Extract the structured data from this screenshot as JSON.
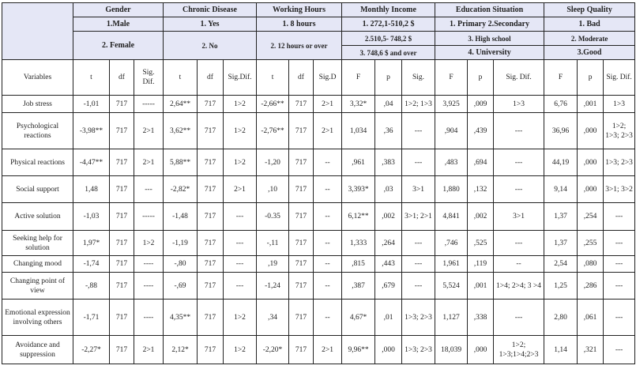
{
  "header": {
    "groups": [
      {
        "title": "Gender",
        "line1": "1.Male",
        "line2": "2. Female"
      },
      {
        "title": "Chronic Disease",
        "line1": "1. Yes",
        "line2": "2. No"
      },
      {
        "title": "Working Hours",
        "line1": "1. 8 hours",
        "line2": "2. 12 hours or over"
      },
      {
        "title": "Monthly Income",
        "line1": "1. 272,1-510,2 $",
        "line2": "2.510,5- 748,2 $",
        "line3": "3. 748,6 $ and over"
      },
      {
        "title": "Education Situation",
        "line1": "1. Primary 2.Secondary",
        "line2": "3. High school",
        "line3": "4. University"
      },
      {
        "title": "Sleep Quality",
        "line1": "1. Bad",
        "line2": "2. Moderate",
        "line3": "3.Good"
      }
    ],
    "columns": [
      "Variables",
      "t",
      "df",
      "Sig. Dif.",
      "t",
      "df",
      "Sig.Dif.",
      "t",
      "df",
      "Sig.D",
      "F",
      "p",
      "Sig.",
      "F",
      "p",
      "Sig. Dif.",
      "F",
      "p",
      "Sig. Dif."
    ]
  },
  "rows": [
    {
      "cells": [
        "Job stress",
        "-1,01",
        "717",
        "-----",
        "2,64**",
        "717",
        "1>2",
        "-2,66**",
        "717",
        "2>1",
        "3,32*",
        ",04",
        "1>2; 1>3",
        "3,925",
        ",009",
        "1>3",
        "6,76",
        ",001",
        "1>3"
      ]
    },
    {
      "cells": [
        "Psychological reactions",
        "-3,98**",
        "717",
        "2>1",
        "3,62**",
        "717",
        "1>2",
        "-2,76**",
        "717",
        "2>1",
        "1,034",
        ",36",
        "---",
        ",904",
        ",439",
        "---",
        "36,96",
        ",000",
        "1>2; 1>3; 2>3"
      ]
    },
    {
      "cells": [
        "Physical reactions",
        "-4,47**",
        "717",
        "2>1",
        "5,88**",
        "717",
        "1>2",
        "-1,20",
        "717",
        "--",
        ",961",
        ",383",
        "---",
        ",483",
        ",694",
        "---",
        "44,19",
        ",000",
        "1>3; 2>3"
      ]
    },
    {
      "cells": [
        "Social support",
        "1,48",
        "717",
        "---",
        "-2,82*",
        "717",
        "2>1",
        ",10",
        "717",
        "--",
        "3,393*",
        ",03",
        "3>1",
        "1,880",
        ",132",
        "---",
        "9,14",
        ",000",
        "3>1; 3>2"
      ]
    },
    {
      "cells": [
        "Active solution",
        "-1,03",
        "717",
        "-----",
        "-1,48",
        "717",
        "---",
        "-0.35",
        "717",
        "--",
        "6,12**",
        ",002",
        "3>1; 2>1",
        "4,841",
        ",002",
        "3>1",
        "1,37",
        ",254",
        "---"
      ]
    },
    {
      "cells": [
        "Seeking help for solution",
        "1,97*",
        "717",
        "1>2",
        "-1,19",
        "717",
        "---",
        "-,11",
        "717",
        "--",
        "1,333",
        ",264",
        "---",
        ",746",
        ",525",
        "---",
        "1,37",
        ",255",
        "---"
      ]
    },
    {
      "cells": [
        "Changing mood",
        "-1,74",
        "717",
        "----",
        "-,80",
        "717",
        "---",
        ",19",
        "717",
        "--",
        ",815",
        ",443",
        "---",
        "1,961",
        ",119",
        "--",
        "2,54",
        ",080",
        "---"
      ]
    },
    {
      "cells": [
        "Changing point of view",
        "-,88",
        "717",
        "----",
        "-,69",
        "717",
        "---",
        "-1,24",
        "717",
        "--",
        ",387",
        ",679",
        "---",
        "5,524",
        ",001",
        "1>4; 2>4; 3 >4",
        "1,25",
        ",286",
        "---"
      ]
    },
    {
      "cells": [
        "Emotional expression involving others",
        "-1,71",
        "717",
        "----",
        "4,35**",
        "717",
        "1>2",
        ",34",
        "717",
        "--",
        "4,67*",
        ",01",
        "1>3; 2>3",
        "1,127",
        ",338",
        "---",
        "2,80",
        ",061",
        "---"
      ]
    },
    {
      "cells": [
        "Avoidance and suppression",
        "-2,27*",
        "717",
        "2>1",
        "2,12*",
        "717",
        "1>2",
        "-2,20*",
        "717",
        "2>1",
        "9,96**",
        ",000",
        "1>3; 2>3",
        "18,039",
        ",000",
        "1>2; 1>3;1>4;2>3",
        "1,14",
        ",321",
        "---"
      ]
    }
  ]
}
